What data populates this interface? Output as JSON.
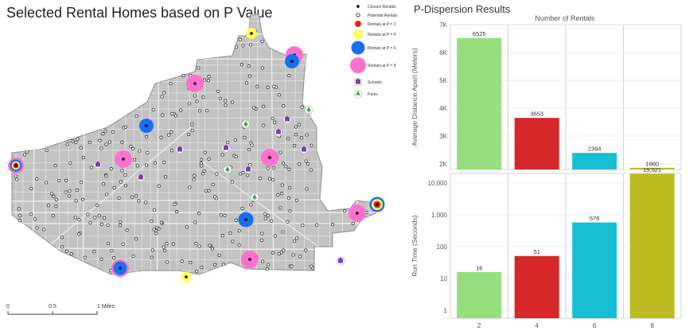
{
  "map": {
    "title": "Selected Rental Homes based on P Value",
    "legend": [
      {
        "key": "chosen",
        "label": "Chosen Rentals"
      },
      {
        "key": "potential",
        "label": "Potential Rentals"
      },
      {
        "key": "p2",
        "label": "Rentals at P = 2",
        "color": "#e8201e"
      },
      {
        "key": "p4",
        "label": "Rentals at P = 4",
        "color": "#ffff5a"
      },
      {
        "key": "p6",
        "label": "Rentals at P = 6",
        "color": "#1670f0"
      },
      {
        "key": "p8",
        "label": "Rentals at P = 8",
        "color": "#ff70cf"
      },
      {
        "key": "schools",
        "label": "Schools",
        "icon": "school-icon",
        "color": "#7a3fa8"
      },
      {
        "key": "parks",
        "label": "Parks",
        "icon": "tree-icon",
        "color": "#3aa142"
      }
    ],
    "scale_bar": {
      "labels": [
        "0",
        "0.5",
        "1 Miles"
      ]
    },
    "colors": {
      "city": "#c3c3c3",
      "streets": "#ececec",
      "outline": "#8a8a8a"
    }
  },
  "chart": {
    "title": "P-Dispersion Results",
    "top_header": "Number of Rentals"
  },
  "chart_data": [
    {
      "type": "bar",
      "title": "Number of Rentals",
      "categories": [
        "2",
        "4",
        "6",
        "8"
      ],
      "values": [
        6525,
        3653,
        2394,
        1860
      ],
      "data_labels": [
        "6525",
        "3653",
        "2394",
        "1860"
      ],
      "ylabel": "Average Distance Apart (Meters)",
      "ylim": [
        1800,
        7000
      ],
      "yticks": [
        2000,
        3000,
        4000,
        5000,
        6000,
        7000
      ],
      "ytick_labels": [
        "2K",
        "3K",
        "4K",
        "5K",
        "6K",
        "7K"
      ],
      "colors": [
        "#96de7e",
        "#d62828",
        "#18bfd2",
        "#bcbc21"
      ]
    },
    {
      "type": "bar",
      "categories": [
        "2",
        "4",
        "6",
        "8"
      ],
      "values": [
        16,
        51,
        576,
        19521
      ],
      "data_labels": [
        "16",
        "51",
        "576",
        "19,521"
      ],
      "ylabel": "Run Time (Seconds)",
      "xlabel": "",
      "yscale": "log",
      "ylim": [
        1,
        20000
      ],
      "yticks": [
        1,
        10,
        100,
        1000,
        10000
      ],
      "ytick_labels": [
        "1",
        "10",
        "100",
        "1,000",
        "10,000"
      ],
      "colors": [
        "#96de7e",
        "#d62828",
        "#18bfd2",
        "#bcbc21"
      ]
    }
  ]
}
